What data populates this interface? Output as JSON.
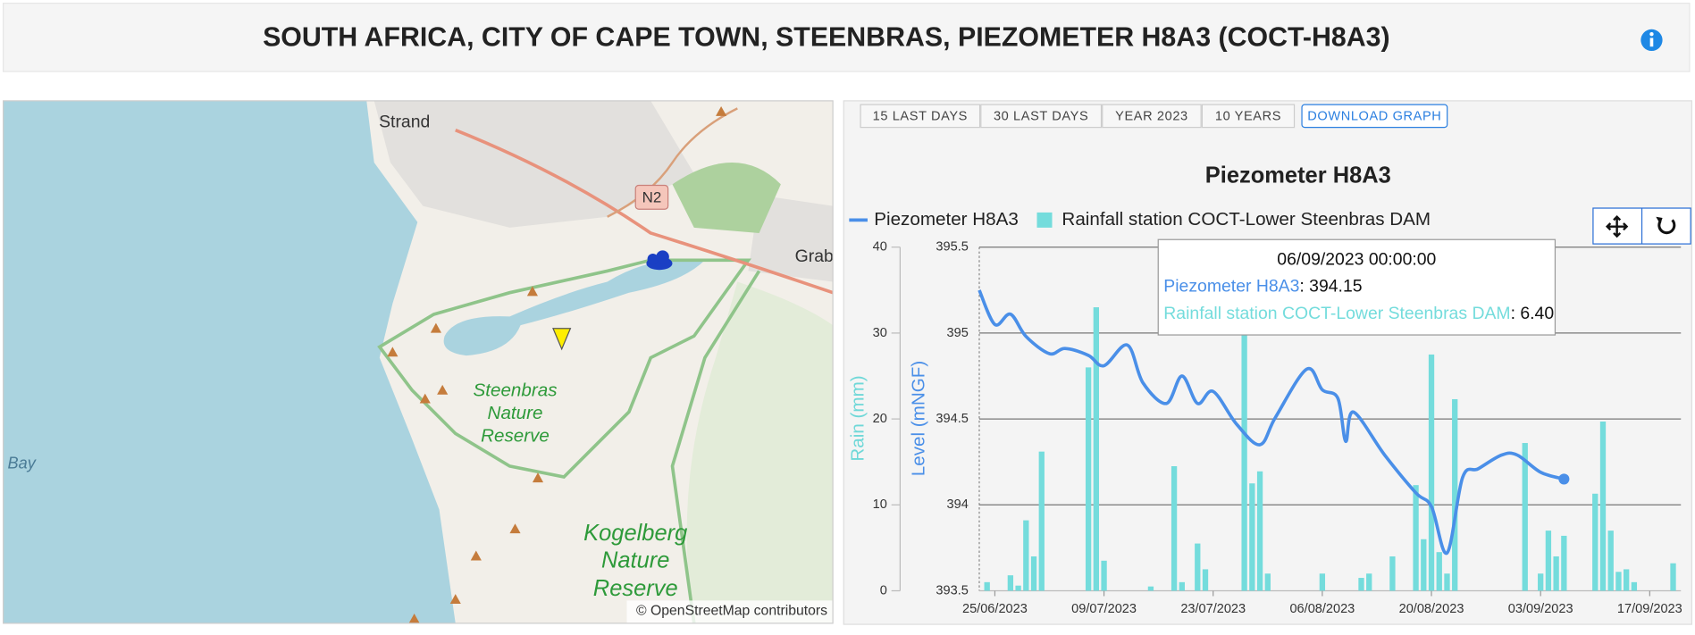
{
  "header": {
    "title": "SOUTH AFRICA, CITY OF CAPE TOWN, STEENBRAS, PIEZOMETER H8A3 (COCT-H8A3)"
  },
  "map": {
    "places": [
      "Strand",
      "Grab",
      "Bay"
    ],
    "road": "N2",
    "reserves": [
      [
        "Steenbras",
        "Nature",
        "Reserve"
      ],
      [
        "Kogelberg",
        "Nature",
        "Reserve"
      ]
    ],
    "attribution": "© OpenStreetMap contributors"
  },
  "controls": {
    "ranges": [
      "15 LAST DAYS",
      "30 LAST DAYS",
      "YEAR 2023",
      "10 YEARS"
    ],
    "download": "DOWNLOAD GRAPH"
  },
  "chart_data": {
    "type": "combo",
    "title": "Piezometer H8A3",
    "y_label": "Level (mNGF)",
    "y2_label": "Rain (mm)",
    "xlim": [
      "23/06/2023",
      "21/09/2023"
    ],
    "xticks": [
      "25/06/2023",
      "09/07/2023",
      "23/07/2023",
      "06/08/2023",
      "20/08/2023",
      "03/09/2023",
      "17/09/2023"
    ],
    "ylim": [
      393.5,
      395.5
    ],
    "yticks": [
      393.5,
      394,
      394.5,
      395,
      395.5
    ],
    "y2lim": [
      0,
      40
    ],
    "y2ticks": [
      0,
      10,
      20,
      30,
      40
    ],
    "grid": true,
    "series": [
      {
        "name": "Piezometer H8A3",
        "type": "line",
        "color": "#4a8fe8",
        "x": [
          "23/06/2023",
          "25/06/2023",
          "27/06/2023",
          "29/06/2023",
          "02/07/2023",
          "04/07/2023",
          "07/07/2023",
          "09/07/2023",
          "12/07/2023",
          "14/07/2023",
          "17/07/2023",
          "19/07/2023",
          "21/07/2023",
          "23/07/2023",
          "26/07/2023",
          "29/07/2023",
          "31/07/2023",
          "04/08/2023",
          "06/08/2023",
          "08/08/2023",
          "09/08/2023",
          "10/08/2023",
          "14/08/2023",
          "18/08/2023",
          "20/08/2023",
          "22/08/2023",
          "24/08/2023",
          "26/08/2023",
          "29/08/2023",
          "31/08/2023",
          "03/09/2023",
          "06/09/2023"
        ],
        "values": [
          395.25,
          395.05,
          395.11,
          394.98,
          394.88,
          394.91,
          394.87,
          394.81,
          394.93,
          394.71,
          394.59,
          394.75,
          394.59,
          394.66,
          394.47,
          394.35,
          394.51,
          394.79,
          394.67,
          394.62,
          394.37,
          394.54,
          394.29,
          394.07,
          393.99,
          393.72,
          394.16,
          394.21,
          394.29,
          394.29,
          394.19,
          394.15
        ]
      },
      {
        "name": "Rainfall station COCT-Lower Steenbras DAM",
        "type": "bar",
        "axis": "y2",
        "color": "#74dcdc",
        "x": [
          "24/06/2023",
          "27/06/2023",
          "28/06/2023",
          "29/06/2023",
          "30/06/2023",
          "01/07/2023",
          "07/07/2023",
          "08/07/2023",
          "09/07/2023",
          "15/07/2023",
          "18/07/2023",
          "19/07/2023",
          "21/07/2023",
          "22/07/2023",
          "27/07/2023",
          "28/07/2023",
          "29/07/2023",
          "30/07/2023",
          "06/08/2023",
          "11/08/2023",
          "12/08/2023",
          "15/08/2023",
          "18/08/2023",
          "19/08/2023",
          "20/08/2023",
          "21/08/2023",
          "22/08/2023",
          "23/08/2023",
          "01/09/2023",
          "03/09/2023",
          "04/09/2023",
          "05/09/2023",
          "06/09/2023",
          "10/09/2023",
          "11/09/2023",
          "12/09/2023",
          "13/09/2023",
          "14/09/2023",
          "15/09/2023",
          "20/09/2023"
        ],
        "values": [
          1,
          1.8,
          0.6,
          8.2,
          4,
          16.2,
          26,
          33,
          3.5,
          0.5,
          14.5,
          1,
          5.5,
          2.5,
          31,
          12.5,
          13.9,
          2,
          2,
          1.5,
          2,
          4,
          12.3,
          6,
          27.5,
          4.5,
          2,
          22.3,
          17.2,
          2,
          7,
          4,
          6.4,
          11.3,
          19.7,
          7,
          2.2,
          2.5,
          1,
          3.2
        ]
      }
    ]
  },
  "tooltip": {
    "title": "06/09/2023 00:00:00",
    "lines": [
      [
        "Piezometer H8A3",
        ": 394.15"
      ],
      [
        "Rainfall station COCT-Lower Steenbras DAM",
        ": 6.40"
      ]
    ]
  }
}
